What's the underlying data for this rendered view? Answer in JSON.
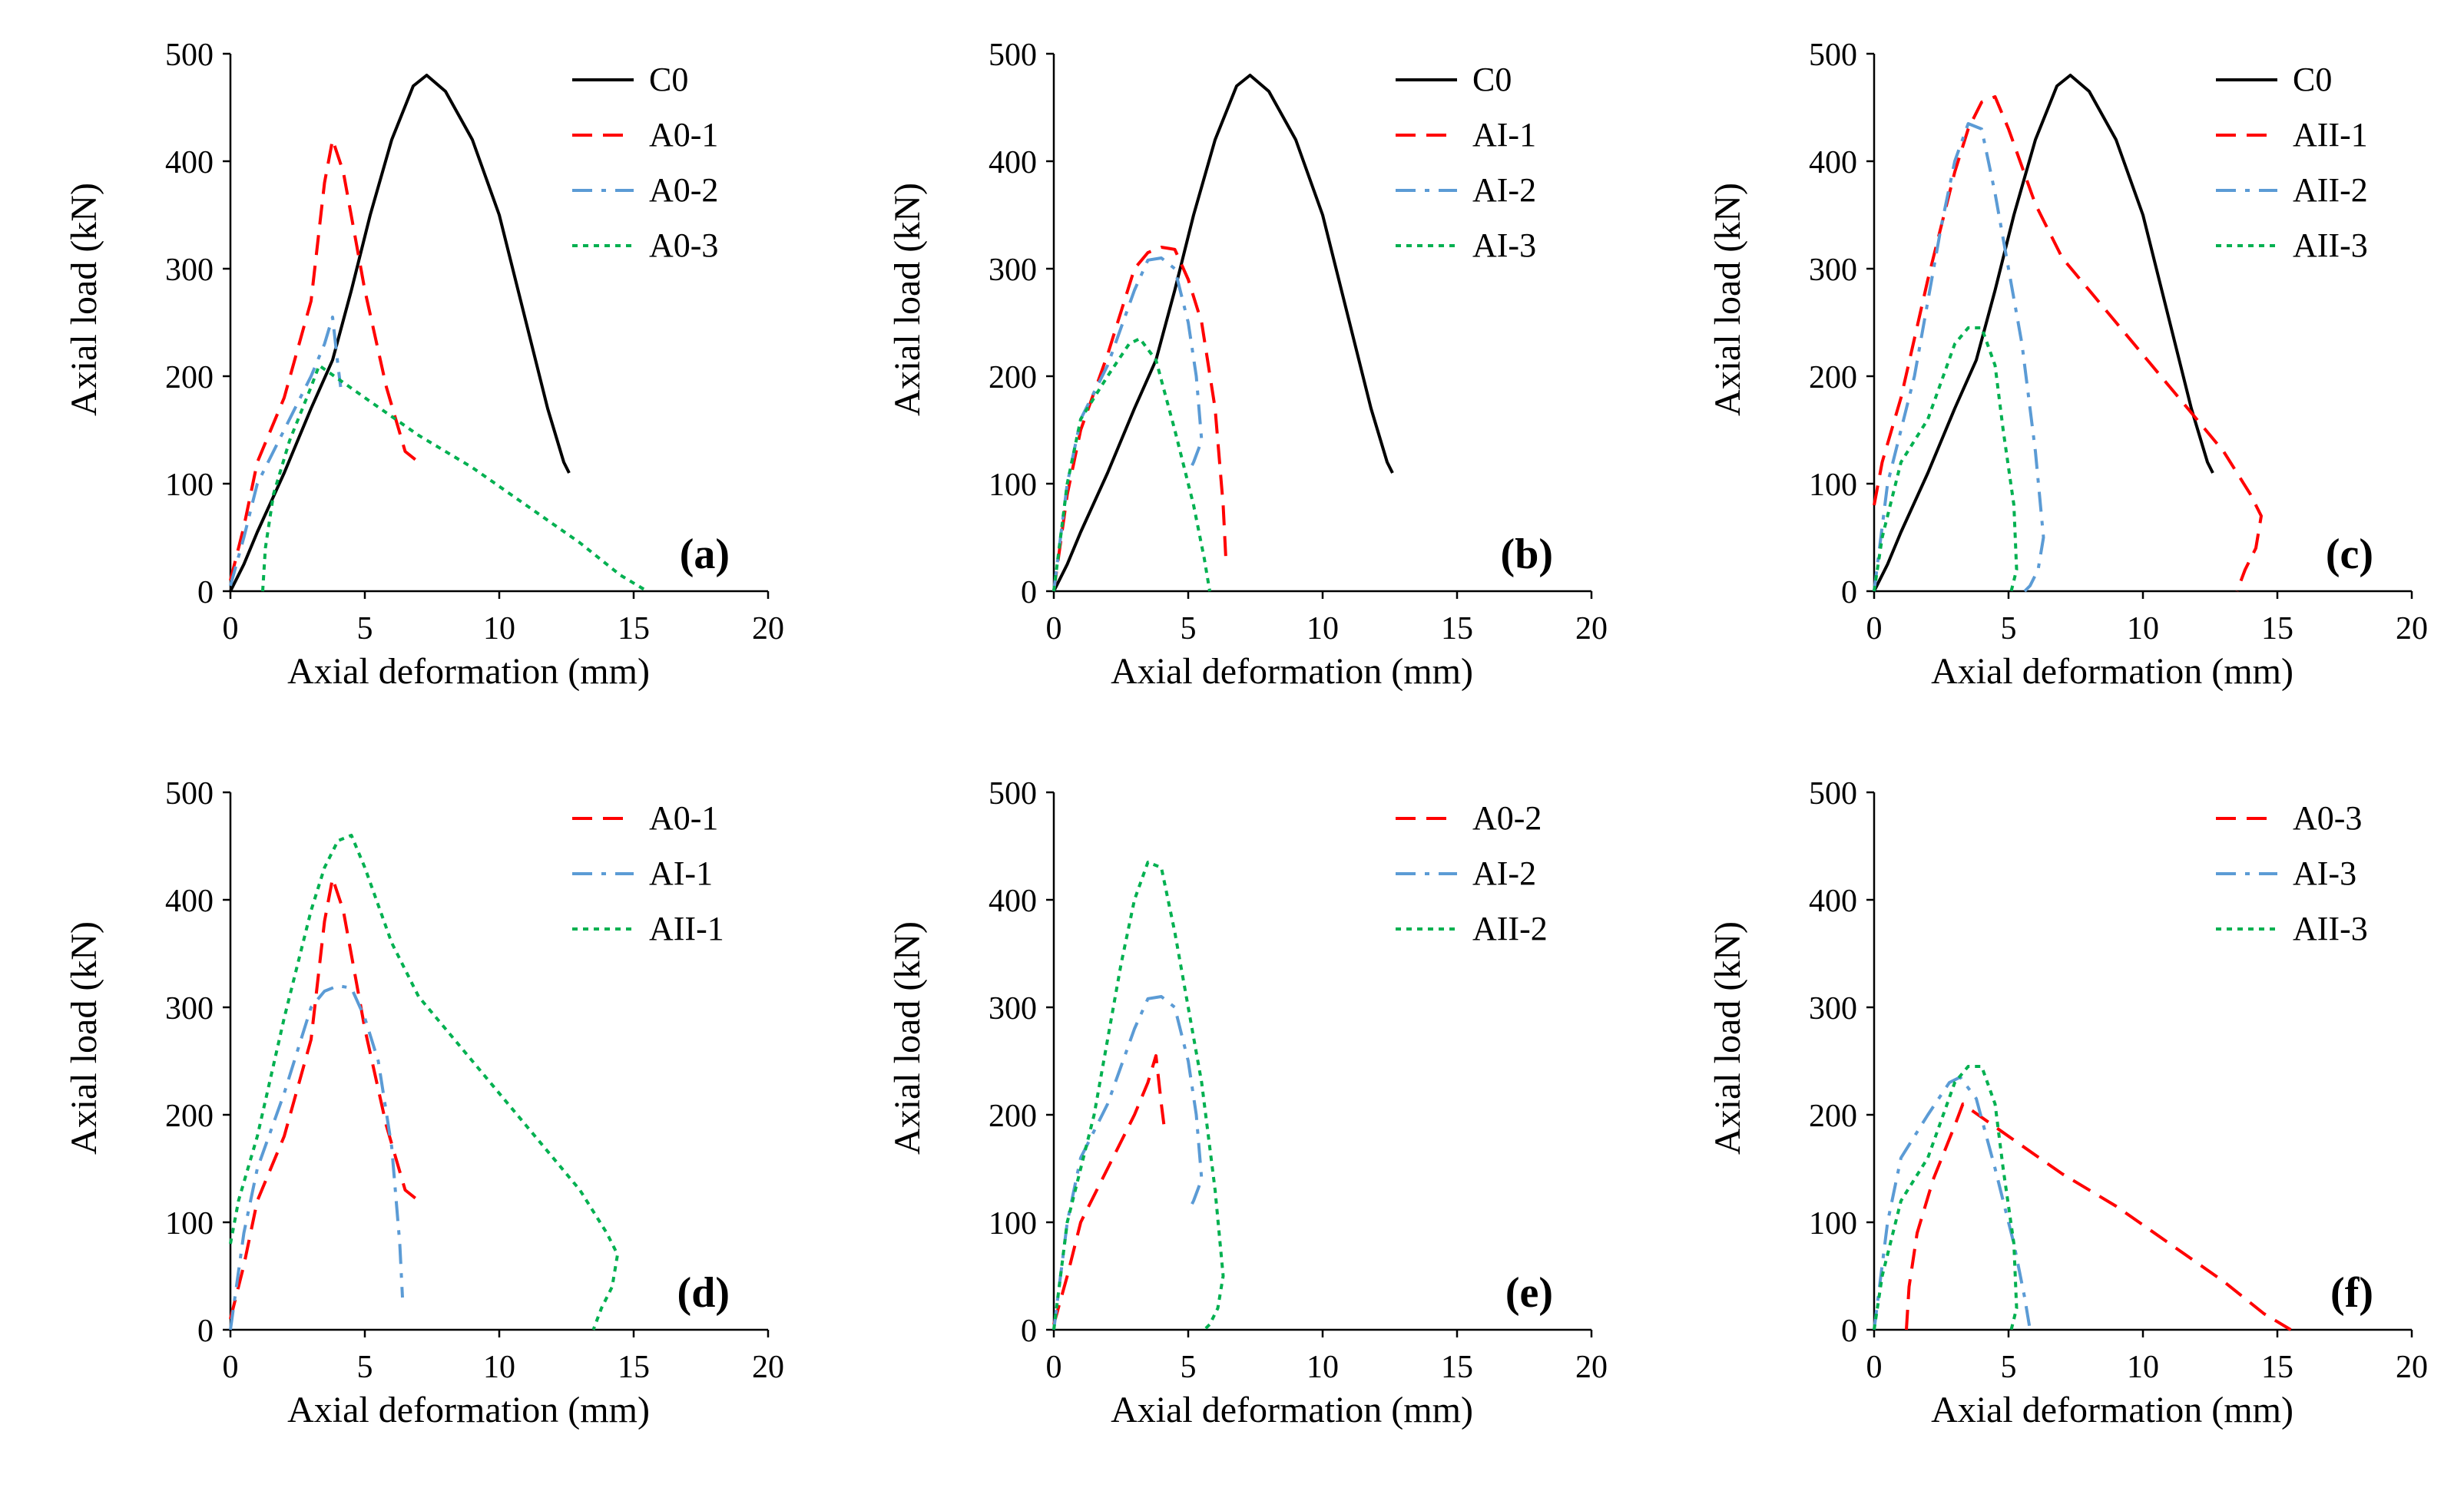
{
  "figure": {
    "xlabel": "Axial deformation (mm)",
    "ylabel": "Axial load (kN)"
  },
  "series_styles": {
    "C0": {
      "color": "#000000",
      "dash": "solid"
    },
    "A0-1": {
      "color": "#ff0000",
      "dash": "dash"
    },
    "AI-1": {
      "color": "#5b9bd5",
      "dash": "dashdot"
    },
    "AII-1": {
      "color": "#00b050",
      "dash": "dot"
    },
    "A0-2": {
      "color": "#5b9bd5",
      "dash": "dashdot"
    },
    "A0-3": {
      "color": "#00b050",
      "dash": "dot"
    }
  },
  "chart_data": [
    {
      "panel": "(a)",
      "type": "line",
      "title": "",
      "xlabel": "Axial deformation (mm)",
      "ylabel": "Axial load (kN)",
      "xlim": [
        0,
        20
      ],
      "ylim": [
        0,
        500
      ],
      "xticks": [
        0,
        5,
        10,
        15,
        20
      ],
      "yticks": [
        0,
        100,
        200,
        300,
        400,
        500
      ],
      "legend_position": "top-right",
      "series": [
        {
          "name": "C0",
          "color": "#000000",
          "dash": "solid",
          "x": [
            0,
            0.5,
            1,
            2,
            3,
            3.8,
            4.5,
            5.2,
            6,
            6.8,
            7.3,
            8,
            9,
            10,
            11,
            11.8,
            12.4,
            12.6
          ],
          "y": [
            0,
            25,
            55,
            110,
            170,
            215,
            280,
            350,
            420,
            470,
            480,
            465,
            420,
            350,
            250,
            170,
            120,
            110
          ]
        },
        {
          "name": "A0-1",
          "color": "#ff0000",
          "dash": "dash",
          "x": [
            0,
            0.5,
            1,
            2,
            3,
            3.5,
            3.8,
            4.2,
            5,
            5.8,
            6.5,
            7
          ],
          "y": [
            10,
            60,
            120,
            180,
            270,
            380,
            420,
            390,
            280,
            190,
            130,
            120
          ]
        },
        {
          "name": "A0-2",
          "color": "#5b9bd5",
          "dash": "dashdot",
          "x": [
            0,
            0.5,
            1,
            2,
            3,
            3.5,
            3.8,
            4,
            4.1
          ],
          "y": [
            5,
            50,
            100,
            150,
            200,
            230,
            255,
            210,
            190
          ]
        },
        {
          "name": "A0-3",
          "color": "#00b050",
          "dash": "dot",
          "x": [
            1.2,
            1.3,
            1.6,
            2.2,
            3,
            3.3,
            5,
            7,
            9,
            11,
            13,
            14.5,
            15.5
          ],
          "y": [
            0,
            40,
            90,
            140,
            190,
            210,
            180,
            145,
            115,
            80,
            45,
            15,
            0
          ]
        }
      ]
    },
    {
      "panel": "(b)",
      "type": "line",
      "title": "",
      "xlabel": "Axial deformation (mm)",
      "ylabel": "Axial load (kN)",
      "xlim": [
        0,
        20
      ],
      "ylim": [
        0,
        500
      ],
      "xticks": [
        0,
        5,
        10,
        15,
        20
      ],
      "yticks": [
        0,
        100,
        200,
        300,
        400,
        500
      ],
      "legend_position": "top-right",
      "series": [
        {
          "name": "C0",
          "color": "#000000",
          "dash": "solid",
          "x": [
            0,
            0.5,
            1,
            2,
            3,
            3.8,
            4.5,
            5.2,
            6,
            6.8,
            7.3,
            8,
            9,
            10,
            11,
            11.8,
            12.4,
            12.6
          ],
          "y": [
            0,
            25,
            55,
            110,
            170,
            215,
            280,
            350,
            420,
            470,
            480,
            465,
            420,
            350,
            250,
            170,
            120,
            110
          ]
        },
        {
          "name": "AI-1",
          "color": "#ff0000",
          "dash": "dash",
          "x": [
            0,
            0.5,
            1,
            2,
            3,
            3.5,
            4,
            4.5,
            5,
            5.5,
            6,
            6.3,
            6.4
          ],
          "y": [
            0,
            90,
            150,
            220,
            300,
            315,
            320,
            318,
            290,
            250,
            170,
            80,
            30
          ]
        },
        {
          "name": "AI-2",
          "color": "#5b9bd5",
          "dash": "dashdot",
          "x": [
            0,
            0.5,
            1,
            2,
            3,
            3.5,
            4,
            4.5,
            5,
            5.3,
            5.5,
            5.2,
            5
          ],
          "y": [
            0,
            100,
            160,
            210,
            280,
            308,
            310,
            300,
            250,
            200,
            140,
            120,
            110
          ]
        },
        {
          "name": "AI-3",
          "color": "#00b050",
          "dash": "dot",
          "x": [
            0,
            0.5,
            1,
            2,
            2.8,
            3.2,
            3.8,
            4.5,
            5.2,
            5.6,
            5.8
          ],
          "y": [
            0,
            100,
            160,
            200,
            230,
            235,
            215,
            150,
            80,
            30,
            0
          ]
        }
      ]
    },
    {
      "panel": "(c)",
      "type": "line",
      "title": "",
      "xlabel": "Axial deformation (mm)",
      "ylabel": "Axial load (kN)",
      "xlim": [
        0,
        20
      ],
      "ylim": [
        0,
        500
      ],
      "xticks": [
        0,
        5,
        10,
        15,
        20
      ],
      "yticks": [
        0,
        100,
        200,
        300,
        400,
        500
      ],
      "legend_position": "top-right",
      "series": [
        {
          "name": "C0",
          "color": "#000000",
          "dash": "solid",
          "x": [
            0,
            0.5,
            1,
            2,
            3,
            3.8,
            4.5,
            5.2,
            6,
            6.8,
            7.3,
            8,
            9,
            10,
            11,
            11.8,
            12.4,
            12.6
          ],
          "y": [
            0,
            25,
            55,
            110,
            170,
            215,
            280,
            350,
            420,
            470,
            480,
            465,
            420,
            350,
            250,
            170,
            120,
            110
          ]
        },
        {
          "name": "AII-1",
          "color": "#ff0000",
          "dash": "dash",
          "x": [
            0,
            0.3,
            1,
            2,
            3,
            3.5,
            4,
            4.5,
            5,
            6,
            7,
            9,
            11,
            13,
            14,
            14.4,
            14.2,
            13.8,
            13.5
          ],
          "y": [
            80,
            120,
            180,
            290,
            390,
            430,
            455,
            460,
            430,
            360,
            310,
            250,
            190,
            130,
            90,
            70,
            40,
            20,
            0
          ]
        },
        {
          "name": "AII-2",
          "color": "#5b9bd5",
          "dash": "dashdot",
          "x": [
            0,
            0.5,
            1,
            1.5,
            2,
            2.5,
            3,
            3.5,
            4,
            4.5,
            5,
            5.5,
            6,
            6.3,
            6.1,
            5.8,
            5.6
          ],
          "y": [
            0,
            100,
            150,
            200,
            270,
            340,
            400,
            435,
            430,
            370,
            300,
            230,
            130,
            50,
            20,
            5,
            0
          ]
        },
        {
          "name": "AII-3",
          "color": "#00b050",
          "dash": "dot",
          "x": [
            0,
            0.3,
            1,
            2,
            3,
            3.5,
            4,
            4.5,
            4.8,
            5.2,
            5.3,
            5.1
          ],
          "y": [
            0,
            50,
            120,
            160,
            230,
            245,
            245,
            210,
            150,
            80,
            20,
            0
          ]
        }
      ]
    },
    {
      "panel": "(d)",
      "type": "line",
      "title": "",
      "xlabel": "Axial deformation (mm)",
      "ylabel": "Axial load (kN)",
      "xlim": [
        0,
        20
      ],
      "ylim": [
        0,
        500
      ],
      "xticks": [
        0,
        5,
        10,
        15,
        20
      ],
      "yticks": [
        0,
        100,
        200,
        300,
        400,
        500
      ],
      "legend_position": "top-right",
      "series": [
        {
          "name": "A0-1",
          "color": "#ff0000",
          "dash": "dash",
          "x": [
            0,
            0.5,
            1,
            2,
            3,
            3.5,
            3.8,
            4.2,
            5,
            5.8,
            6.5,
            7
          ],
          "y": [
            10,
            60,
            120,
            180,
            270,
            380,
            420,
            390,
            280,
            190,
            130,
            120
          ]
        },
        {
          "name": "AI-1",
          "color": "#5b9bd5",
          "dash": "dashdot",
          "x": [
            0,
            0.5,
            1,
            2,
            3,
            3.5,
            4,
            4.5,
            5,
            5.5,
            6,
            6.3,
            6.4
          ],
          "y": [
            0,
            90,
            150,
            220,
            300,
            315,
            320,
            318,
            290,
            250,
            170,
            80,
            30
          ]
        },
        {
          "name": "AII-1",
          "color": "#00b050",
          "dash": "dot",
          "x": [
            0,
            0.3,
            1,
            2,
            3,
            3.5,
            4,
            4.5,
            5,
            6,
            7,
            9,
            11,
            13,
            14,
            14.4,
            14.2,
            13.8,
            13.5
          ],
          "y": [
            80,
            120,
            180,
            290,
            390,
            430,
            455,
            460,
            430,
            360,
            310,
            250,
            190,
            130,
            90,
            70,
            40,
            20,
            0
          ]
        }
      ]
    },
    {
      "panel": "(e)",
      "type": "line",
      "title": "",
      "xlabel": "Axial deformation (mm)",
      "ylabel": "Axial load (kN)",
      "xlim": [
        0,
        20
      ],
      "ylim": [
        0,
        500
      ],
      "xticks": [
        0,
        5,
        10,
        15,
        20
      ],
      "yticks": [
        0,
        100,
        200,
        300,
        400,
        500
      ],
      "legend_position": "top-right",
      "series": [
        {
          "name": "A0-2",
          "color": "#ff0000",
          "dash": "dash",
          "x": [
            0,
            0.5,
            1,
            2,
            3,
            3.5,
            3.8,
            4,
            4.1
          ],
          "y": [
            5,
            50,
            100,
            150,
            200,
            230,
            255,
            210,
            190
          ]
        },
        {
          "name": "AI-2",
          "color": "#5b9bd5",
          "dash": "dashdot",
          "x": [
            0,
            0.5,
            1,
            2,
            3,
            3.5,
            4,
            4.5,
            5,
            5.3,
            5.5,
            5.2,
            5
          ],
          "y": [
            0,
            100,
            160,
            210,
            280,
            308,
            310,
            300,
            250,
            200,
            140,
            120,
            110
          ]
        },
        {
          "name": "AII-2",
          "color": "#00b050",
          "dash": "dot",
          "x": [
            0,
            0.5,
            1,
            1.5,
            2,
            2.5,
            3,
            3.5,
            4,
            4.5,
            5,
            5.5,
            6,
            6.3,
            6.1,
            5.8,
            5.6
          ],
          "y": [
            0,
            100,
            150,
            200,
            270,
            340,
            400,
            435,
            430,
            370,
            300,
            230,
            130,
            50,
            20,
            5,
            0
          ]
        }
      ]
    },
    {
      "panel": "(f)",
      "type": "line",
      "title": "",
      "xlabel": "Axial deformation (mm)",
      "ylabel": "Axial load (kN)",
      "xlim": [
        0,
        20
      ],
      "ylim": [
        0,
        500
      ],
      "xticks": [
        0,
        5,
        10,
        15,
        20
      ],
      "yticks": [
        0,
        100,
        200,
        300,
        400,
        500
      ],
      "legend_position": "top-right",
      "series": [
        {
          "name": "A0-3",
          "color": "#ff0000",
          "dash": "dash",
          "x": [
            1.2,
            1.3,
            1.6,
            2.2,
            3,
            3.3,
            5,
            7,
            9,
            11,
            13,
            14.5,
            15.5
          ],
          "y": [
            0,
            40,
            90,
            140,
            190,
            210,
            180,
            145,
            115,
            80,
            45,
            15,
            0
          ]
        },
        {
          "name": "AI-3",
          "color": "#5b9bd5",
          "dash": "dashdot",
          "x": [
            0,
            0.5,
            1,
            2,
            2.8,
            3.2,
            3.8,
            4.5,
            5.2,
            5.6,
            5.8
          ],
          "y": [
            0,
            100,
            160,
            200,
            230,
            235,
            215,
            150,
            80,
            30,
            0
          ]
        },
        {
          "name": "AII-3",
          "color": "#00b050",
          "dash": "dot",
          "x": [
            0,
            0.3,
            1,
            2,
            3,
            3.5,
            4,
            4.5,
            4.8,
            5.2,
            5.3,
            5.1
          ],
          "y": [
            0,
            50,
            120,
            160,
            230,
            245,
            245,
            210,
            150,
            80,
            20,
            0
          ]
        }
      ]
    }
  ]
}
